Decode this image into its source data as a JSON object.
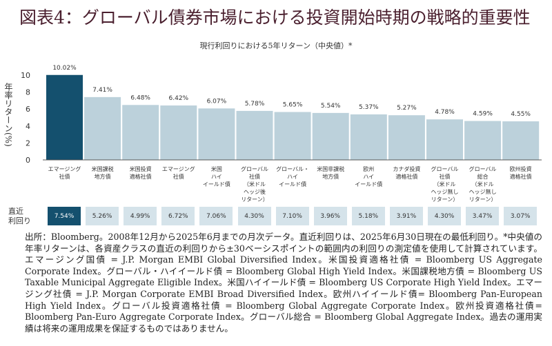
{
  "title": "図表4：グローバル債券市場における投資開始時期の戦略的重要性",
  "yield_label": "直近\n利回り",
  "footnote": "出所：Bloomberg。2008年12月から2025年6月までの月次データ。直近利回りは、2025年6月30日現在の最低利回り。*中央値の年率リターンは、各資産クラスの直近の利回りから±30ベーシスポイントの範囲内の利回りの測定値を使用して計算されています。エマージング国債 = J.P. Morgan EMBI Global Diversified Index。米国投資適格社債 = Bloomberg US Aggregate Corporate Index。グローバル・ハイイールド債 = Bloomberg Global High Yield Index。米国課税地方債 = Bloomberg US Taxable Municipal Aggregate Eligible Index。米国ハイイールド債 = Bloomberg US Corporate High Yield Index。エマージング社債 = J.P. Morgan Corporate EMBI Broad Diversified Index。欧州ハイイールド債= Bloomberg Pan-European High Yield Index。グローバル投資適格社債 = Bloomberg Global Aggregate Corporate Index。欧州投資適格社債= Bloomberg Pan-Euro Aggregate Corporate Index。グローバル総合 = Bloomberg Global Aggregate Index。過去の運用実績は将来の運用成果を保証するものではありません。",
  "colors": {
    "highlight": "#14506e",
    "bar": "#bcd1db"
  },
  "chart_data": {
    "type": "bar",
    "title": "現行利回りにおける5年リターン（中央値）*",
    "ylabel": "年率リターン(%)",
    "ylim": [
      0,
      10
    ],
    "yticks": [
      "0",
      "2",
      "4",
      "6",
      "8",
      "10"
    ],
    "categories": [
      "エマージング\n社債",
      "米国課税\n地方債",
      "米国投資\n適格社債",
      "エマージング\n社債",
      "米国\nハイ\nイールド債",
      "グローバル\n社債\n（米ドル\nヘッジ後\nリターン）",
      "グローバル・\nハイ\nイールド債",
      "米国非課税\n地方債",
      "欧州\nハイ\nイールド債",
      "カナダ投資\n適格社債",
      "グローバル\n社債\n（米ドル\nヘッジ無し\nリターン）",
      "グローバル\n総合\n（米ドル\nヘッジ無し\nリターン）",
      "欧州投資\n適格社債"
    ],
    "values": [
      10.02,
      7.41,
      6.48,
      6.42,
      6.07,
      5.78,
      5.65,
      5.54,
      5.37,
      5.27,
      4.78,
      4.59,
      4.55
    ],
    "value_labels": [
      "10.02%",
      "7.41%",
      "6.48%",
      "6.42%",
      "6.07%",
      "5.78%",
      "5.65%",
      "5.54%",
      "5.37%",
      "5.27%",
      "4.78%",
      "4.59%",
      "4.55%"
    ],
    "current_yields": [
      "7.54%",
      "5.26%",
      "4.99%",
      "6.72%",
      "7.06%",
      "4.30%",
      "7.10%",
      "3.96%",
      "5.18%",
      "3.91%",
      "4.30%",
      "3.47%",
      "3.07%"
    ]
  }
}
